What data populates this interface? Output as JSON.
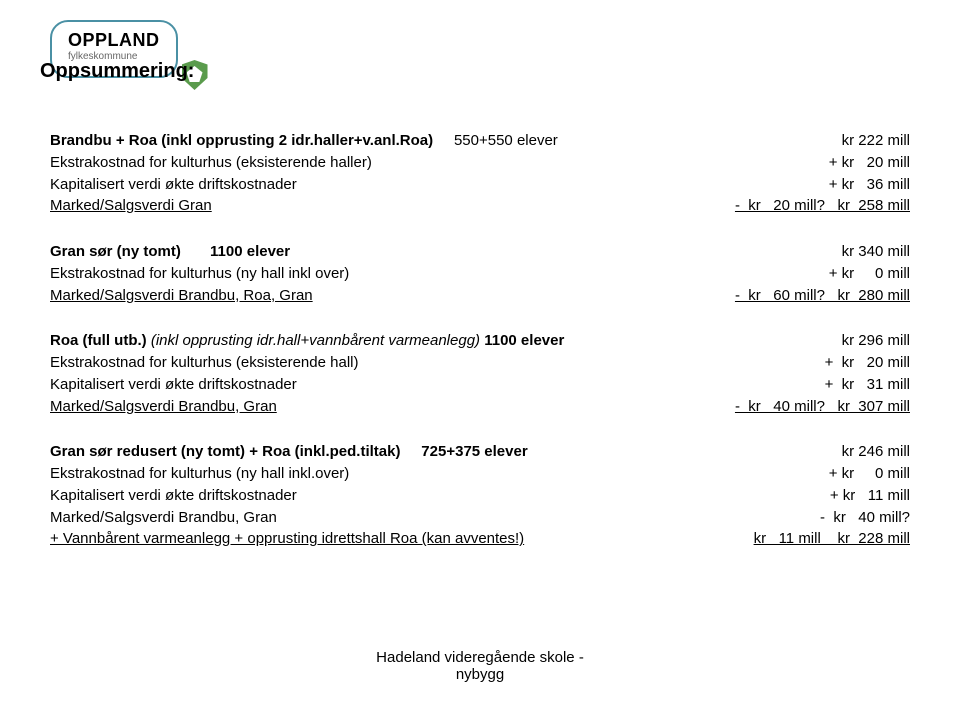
{
  "logo": {
    "brand": "OPPLAND",
    "sub": "fylkeskommune"
  },
  "title": "Oppsummering:",
  "block1": {
    "l1_left": "Brandbu + Roa (inkl opprusting 2 idr.haller+v.anl.Roa)",
    "l1_mid": "     550+550 elever",
    "l1_right": "kr 222 mill",
    "l2_left": "Ekstrakostnad for kulturhus (eksisterende haller)",
    "l2_right": "+ kr   20 mill",
    "l3_left": "Kapitalisert verdi økte driftskostnader",
    "l3_right": "+ kr   36 mill",
    "l4_left": "Marked/Salgsverdi Gran",
    "l4_right": "-  kr   20 mill?   kr  258 mill"
  },
  "block2": {
    "l1_left": "Gran sør (ny tomt)       1100 elever",
    "l1_right": "kr 340 mill",
    "l2_left": "Ekstrakostnad for kulturhus (ny hall inkl over)",
    "l2_right": "+ kr     0 mill",
    "l3_left": "Marked/Salgsverdi Brandbu, Roa, Gran",
    "l3_right": "-  kr   60 mill?   kr  280 mill"
  },
  "block3": {
    "l1_left_a": "Roa (full utb.)",
    "l1_left_b": " (inkl opprusting idr.hall+vannbårent varmeanlegg) ",
    "l1_left_c": "1100 elever",
    "l1_right": "   kr 296 mill",
    "l2_left": "Ekstrakostnad for kulturhus (eksisterende hall)",
    "l2_right": "+  kr   20 mill",
    "l3_left": "Kapitalisert verdi økte driftskostnader",
    "l3_right": "+  kr   31 mill",
    "l4_left": "Marked/Salgsverdi Brandbu, Gran",
    "l4_right": "-  kr   40 mill?   kr  307 mill"
  },
  "block4": {
    "l1_left": "Gran sør redusert (ny tomt) + Roa (inkl.ped.tiltak)     725+375 elever",
    "l1_right": "kr 246 mill",
    "l2_left": "Ekstrakostnad for kulturhus (ny hall inkl.over)",
    "l2_right": "+ kr     0 mill",
    "l3_left": "Kapitalisert verdi økte driftskostnader",
    "l3_right": "+ kr   11 mill",
    "l4_left": "Marked/Salgsverdi Brandbu, Gran",
    "l4_right": "-  kr   40 mill?",
    "l5_left": "+ Vannbårent varmeanlegg + opprusting idrettshall Roa (kan avventes!)",
    "l5_right": "kr   11 mill    kr  228 mill"
  },
  "footer": {
    "line1": "Hadeland videregående skole -",
    "line2": "nybygg"
  }
}
